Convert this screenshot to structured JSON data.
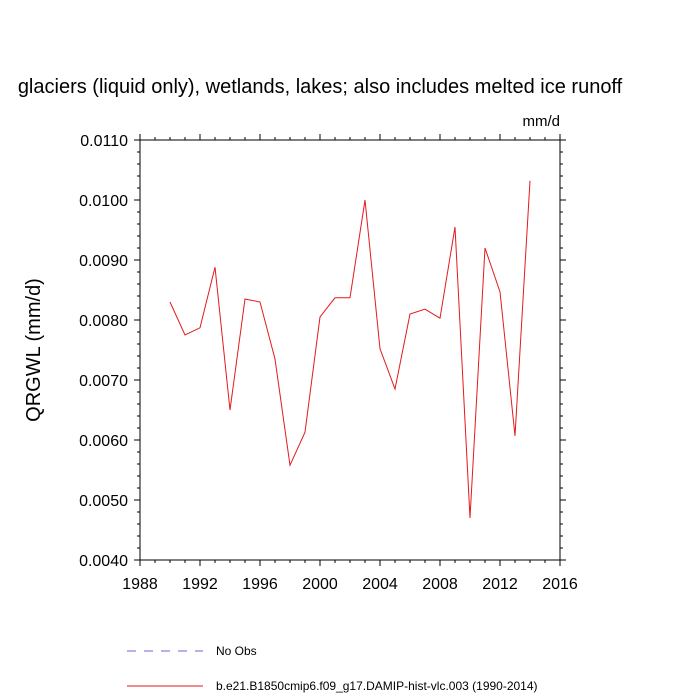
{
  "chart_data": {
    "type": "line",
    "title": "glaciers (liquid only), wetlands, lakes; also includes melted ice runoff",
    "units": "mm/d",
    "ylabel": "QRGWL  (mm/d)",
    "xlabel": "",
    "xlim": [
      1988,
      2016
    ],
    "ylim": [
      0.004,
      0.011
    ],
    "x_ticks": [
      1988,
      1992,
      1996,
      2000,
      2004,
      2008,
      2012,
      2016
    ],
    "y_ticks": [
      0.004,
      0.005,
      0.006,
      0.007,
      0.008,
      0.009,
      0.01,
      0.011
    ],
    "y_tick_labels": [
      "0.0040",
      "0.0050",
      "0.0060",
      "0.0070",
      "0.0080",
      "0.0090",
      "0.0100",
      "0.0110"
    ],
    "x_tick_labels": [
      "1988",
      "1992",
      "1996",
      "2000",
      "2004",
      "2008",
      "2012",
      "2016"
    ],
    "series": [
      {
        "name": "b.e21.B1850cmip6.f09_g17.DAMIP-hist-vlc.003 (1990-2014)",
        "color": "#e31a1c",
        "style": "solid",
        "x": [
          1990,
          1991,
          1992,
          1993,
          1994,
          1995,
          1996,
          1997,
          1998,
          1999,
          2000,
          2001,
          2002,
          2003,
          2004,
          2005,
          2006,
          2007,
          2008,
          2009,
          2010,
          2011,
          2012,
          2013,
          2014
        ],
        "values": [
          0.0083,
          0.00775,
          0.00787,
          0.00888,
          0.0065,
          0.00835,
          0.0083,
          0.00735,
          0.00558,
          0.00613,
          0.00805,
          0.00837,
          0.00837,
          0.01,
          0.00752,
          0.00685,
          0.0081,
          0.00818,
          0.00803,
          0.00955,
          0.0047,
          0.0092,
          0.00847,
          0.00607,
          0.01032
        ]
      }
    ],
    "legend": [
      {
        "label": "No Obs",
        "color": "#6a6ad8",
        "style": "dashed"
      },
      {
        "label": "b.e21.B1850cmip6.f09_g17.DAMIP-hist-vlc.003 (1990-2014)",
        "color": "#e31a1c",
        "style": "solid"
      }
    ]
  }
}
